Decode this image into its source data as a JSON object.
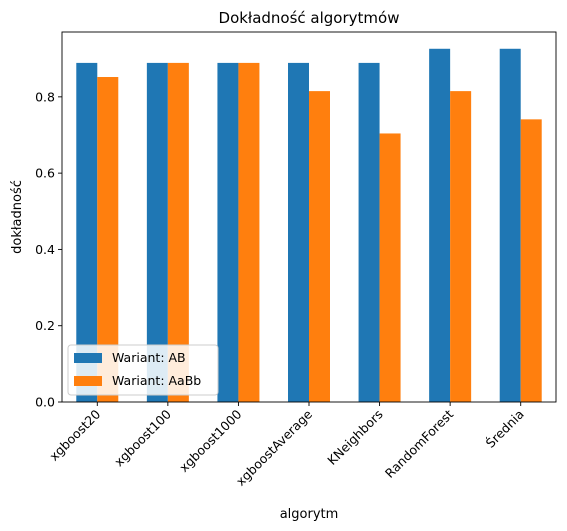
{
  "chart_data": {
    "type": "bar",
    "title": "Dokładność algorytmów",
    "xlabel": "algorytm",
    "ylabel": "dokładność",
    "categories": [
      "xgboost20",
      "xgboost100",
      "xgboost1000",
      "xgboostAverage",
      "KNeighbors",
      "RandomForest",
      "Średnia"
    ],
    "series": [
      {
        "name": "Wariant: AB",
        "color": "#1f77b4",
        "values": [
          0.889,
          0.889,
          0.889,
          0.889,
          0.889,
          0.926,
          0.926
        ]
      },
      {
        "name": "Wariant: AaBb",
        "color": "#ff7f0e",
        "values": [
          0.852,
          0.889,
          0.889,
          0.815,
          0.704,
          0.815,
          0.741
        ]
      }
    ],
    "ylim": [
      0,
      0.97
    ],
    "yticks": [
      0.0,
      0.2,
      0.4,
      0.6,
      0.8
    ],
    "ytick_labels": [
      "0.0",
      "0.2",
      "0.4",
      "0.6",
      "0.8"
    ],
    "grid": false,
    "legend_position": "lower-left"
  }
}
